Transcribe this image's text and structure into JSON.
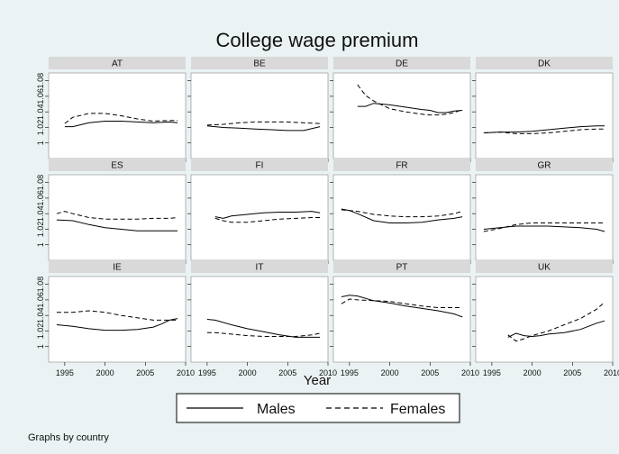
{
  "chart_data": {
    "type": "line",
    "title": "College wage premium",
    "xlabel": "Year",
    "ylabel": "",
    "xlim": [
      1993,
      2010
    ],
    "ylim": [
      0.98,
      1.09
    ],
    "x_ticks": [
      1995,
      2000,
      2005,
      2010
    ],
    "y_ticks": [
      1,
      1.02,
      1.04,
      1.06,
      1.08
    ],
    "y_tick_labels": [
      "1",
      "1.02",
      "1.04",
      "1.06",
      "1.08"
    ],
    "grid": false,
    "legend": {
      "position": "bottom",
      "entries": [
        {
          "name": "Males",
          "style": "solid"
        },
        {
          "name": "Females",
          "style": "dashed"
        }
      ]
    },
    "note": "Graphs by country",
    "panels": [
      {
        "label": "AT",
        "males": {
          "x": [
            1995,
            1996,
            1998,
            2000,
            2002,
            2004,
            2006,
            2008,
            2009
          ],
          "y": [
            1.021,
            1.021,
            1.026,
            1.028,
            1.028,
            1.027,
            1.026,
            1.027,
            1.026
          ]
        },
        "females": {
          "x": [
            1995,
            1996,
            1998,
            2000,
            2002,
            2004,
            2006,
            2008,
            2009
          ],
          "y": [
            1.025,
            1.033,
            1.038,
            1.038,
            1.035,
            1.031,
            1.028,
            1.029,
            1.029
          ]
        }
      },
      {
        "label": "BE",
        "males": {
          "x": [
            1995,
            1997,
            1999,
            2001,
            2003,
            2005,
            2007,
            2009
          ],
          "y": [
            1.022,
            1.02,
            1.019,
            1.018,
            1.017,
            1.016,
            1.016,
            1.021
          ]
        },
        "females": {
          "x": [
            1995,
            1997,
            1999,
            2001,
            2003,
            2005,
            2007,
            2009
          ],
          "y": [
            1.023,
            1.024,
            1.026,
            1.027,
            1.027,
            1.027,
            1.026,
            1.025
          ]
        }
      },
      {
        "label": "DE",
        "males": {
          "x": [
            1996,
            1997,
            1998,
            2000,
            2002,
            2004,
            2005,
            2006,
            2007,
            2008,
            2009
          ],
          "y": [
            1.047,
            1.047,
            1.051,
            1.049,
            1.046,
            1.043,
            1.042,
            1.039,
            1.039,
            1.041,
            1.042
          ]
        },
        "females": {
          "x": [
            1996,
            1997,
            1998,
            2000,
            2002,
            2004,
            2005,
            2006,
            2007,
            2008,
            2009
          ],
          "y": [
            1.075,
            1.061,
            1.054,
            1.044,
            1.04,
            1.037,
            1.036,
            1.036,
            1.037,
            1.039,
            1.043
          ]
        }
      },
      {
        "label": "DK",
        "males": {
          "x": [
            1994,
            1996,
            1998,
            2000,
            2002,
            2004,
            2006,
            2008,
            2009
          ],
          "y": [
            1.013,
            1.014,
            1.014,
            1.015,
            1.017,
            1.019,
            1.021,
            1.022,
            1.022
          ]
        },
        "females": {
          "x": [
            1994,
            1996,
            1998,
            2000,
            2002,
            2004,
            2006,
            2008,
            2009
          ],
          "y": [
            1.013,
            1.014,
            1.012,
            1.012,
            1.013,
            1.015,
            1.017,
            1.018,
            1.018
          ]
        }
      },
      {
        "label": "ES",
        "males": {
          "x": [
            1994,
            1996,
            1998,
            2000,
            2002,
            2004,
            2006,
            2008,
            2009
          ],
          "y": [
            1.032,
            1.031,
            1.026,
            1.022,
            1.02,
            1.018,
            1.018,
            1.018,
            1.018
          ]
        },
        "females": {
          "x": [
            1994,
            1995,
            1996,
            1998,
            2000,
            2002,
            2004,
            2006,
            2008,
            2009
          ],
          "y": [
            1.04,
            1.043,
            1.04,
            1.035,
            1.033,
            1.033,
            1.033,
            1.034,
            1.034,
            1.035
          ]
        }
      },
      {
        "label": "FI",
        "males": {
          "x": [
            1996,
            1997,
            1998,
            2000,
            2002,
            2004,
            2006,
            2008,
            2009
          ],
          "y": [
            1.036,
            1.034,
            1.037,
            1.039,
            1.041,
            1.042,
            1.042,
            1.043,
            1.041
          ]
        },
        "females": {
          "x": [
            1996,
            1997,
            1998,
            2000,
            2002,
            2004,
            2006,
            2008,
            2009
          ],
          "y": [
            1.034,
            1.031,
            1.029,
            1.029,
            1.031,
            1.033,
            1.034,
            1.035,
            1.035
          ]
        }
      },
      {
        "label": "FR",
        "males": {
          "x": [
            1994,
            1995,
            1996,
            1998,
            2000,
            2002,
            2004,
            2006,
            2008,
            2009
          ],
          "y": [
            1.046,
            1.044,
            1.04,
            1.031,
            1.028,
            1.028,
            1.029,
            1.032,
            1.034,
            1.036
          ]
        },
        "females": {
          "x": [
            1994,
            1996,
            1998,
            2000,
            2002,
            2004,
            2006,
            2008,
            2009
          ],
          "y": [
            1.045,
            1.043,
            1.039,
            1.037,
            1.036,
            1.036,
            1.037,
            1.04,
            1.043
          ]
        }
      },
      {
        "label": "GR",
        "males": {
          "x": [
            1994,
            1996,
            1998,
            2000,
            2002,
            2004,
            2006,
            2008,
            2009
          ],
          "y": [
            1.02,
            1.022,
            1.024,
            1.024,
            1.024,
            1.023,
            1.022,
            1.02,
            1.017
          ]
        },
        "females": {
          "x": [
            1994,
            1996,
            1998,
            2000,
            2002,
            2004,
            2006,
            2008,
            2009
          ],
          "y": [
            1.017,
            1.021,
            1.026,
            1.028,
            1.028,
            1.028,
            1.028,
            1.028,
            1.028
          ]
        }
      },
      {
        "label": "IE",
        "males": {
          "x": [
            1994,
            1996,
            1998,
            2000,
            2002,
            2004,
            2006,
            2007,
            2008,
            2009
          ],
          "y": [
            1.028,
            1.026,
            1.023,
            1.021,
            1.021,
            1.022,
            1.025,
            1.029,
            1.034,
            1.036
          ]
        },
        "females": {
          "x": [
            1994,
            1996,
            1998,
            2000,
            2002,
            2004,
            2006,
            2008,
            2009
          ],
          "y": [
            1.044,
            1.044,
            1.046,
            1.044,
            1.04,
            1.037,
            1.034,
            1.034,
            1.034
          ]
        }
      },
      {
        "label": "IT",
        "males": {
          "x": [
            1995,
            1996,
            1998,
            2000,
            2002,
            2004,
            2006,
            2008,
            2009
          ],
          "y": [
            1.035,
            1.034,
            1.028,
            1.023,
            1.019,
            1.015,
            1.012,
            1.012,
            1.012
          ]
        },
        "females": {
          "x": [
            1995,
            1996,
            1998,
            2000,
            2002,
            2004,
            2006,
            2008,
            2009
          ],
          "y": [
            1.018,
            1.018,
            1.016,
            1.014,
            1.013,
            1.013,
            1.013,
            1.015,
            1.017
          ]
        }
      },
      {
        "label": "PT",
        "males": {
          "x": [
            1994,
            1995,
            1996,
            1998,
            2000,
            2002,
            2004,
            2006,
            2008,
            2009
          ],
          "y": [
            1.064,
            1.066,
            1.065,
            1.059,
            1.056,
            1.052,
            1.049,
            1.046,
            1.042,
            1.038
          ]
        },
        "females": {
          "x": [
            1994,
            1995,
            1996,
            1998,
            2000,
            2002,
            2004,
            2006,
            2008,
            2009
          ],
          "y": [
            1.055,
            1.061,
            1.06,
            1.059,
            1.058,
            1.055,
            1.052,
            1.05,
            1.05,
            1.05
          ]
        }
      },
      {
        "label": "UK",
        "males": {
          "x": [
            1997,
            1998,
            1999,
            2000,
            2001,
            2002,
            2004,
            2006,
            2008,
            2009
          ],
          "y": [
            1.012,
            1.017,
            1.014,
            1.013,
            1.014,
            1.016,
            1.018,
            1.022,
            1.03,
            1.033
          ]
        },
        "females": {
          "x": [
            1997,
            1998,
            1999,
            2000,
            2001,
            2002,
            2004,
            2006,
            2008,
            2009
          ],
          "y": [
            1.015,
            1.007,
            1.01,
            1.014,
            1.017,
            1.02,
            1.028,
            1.036,
            1.048,
            1.057
          ]
        }
      }
    ]
  }
}
